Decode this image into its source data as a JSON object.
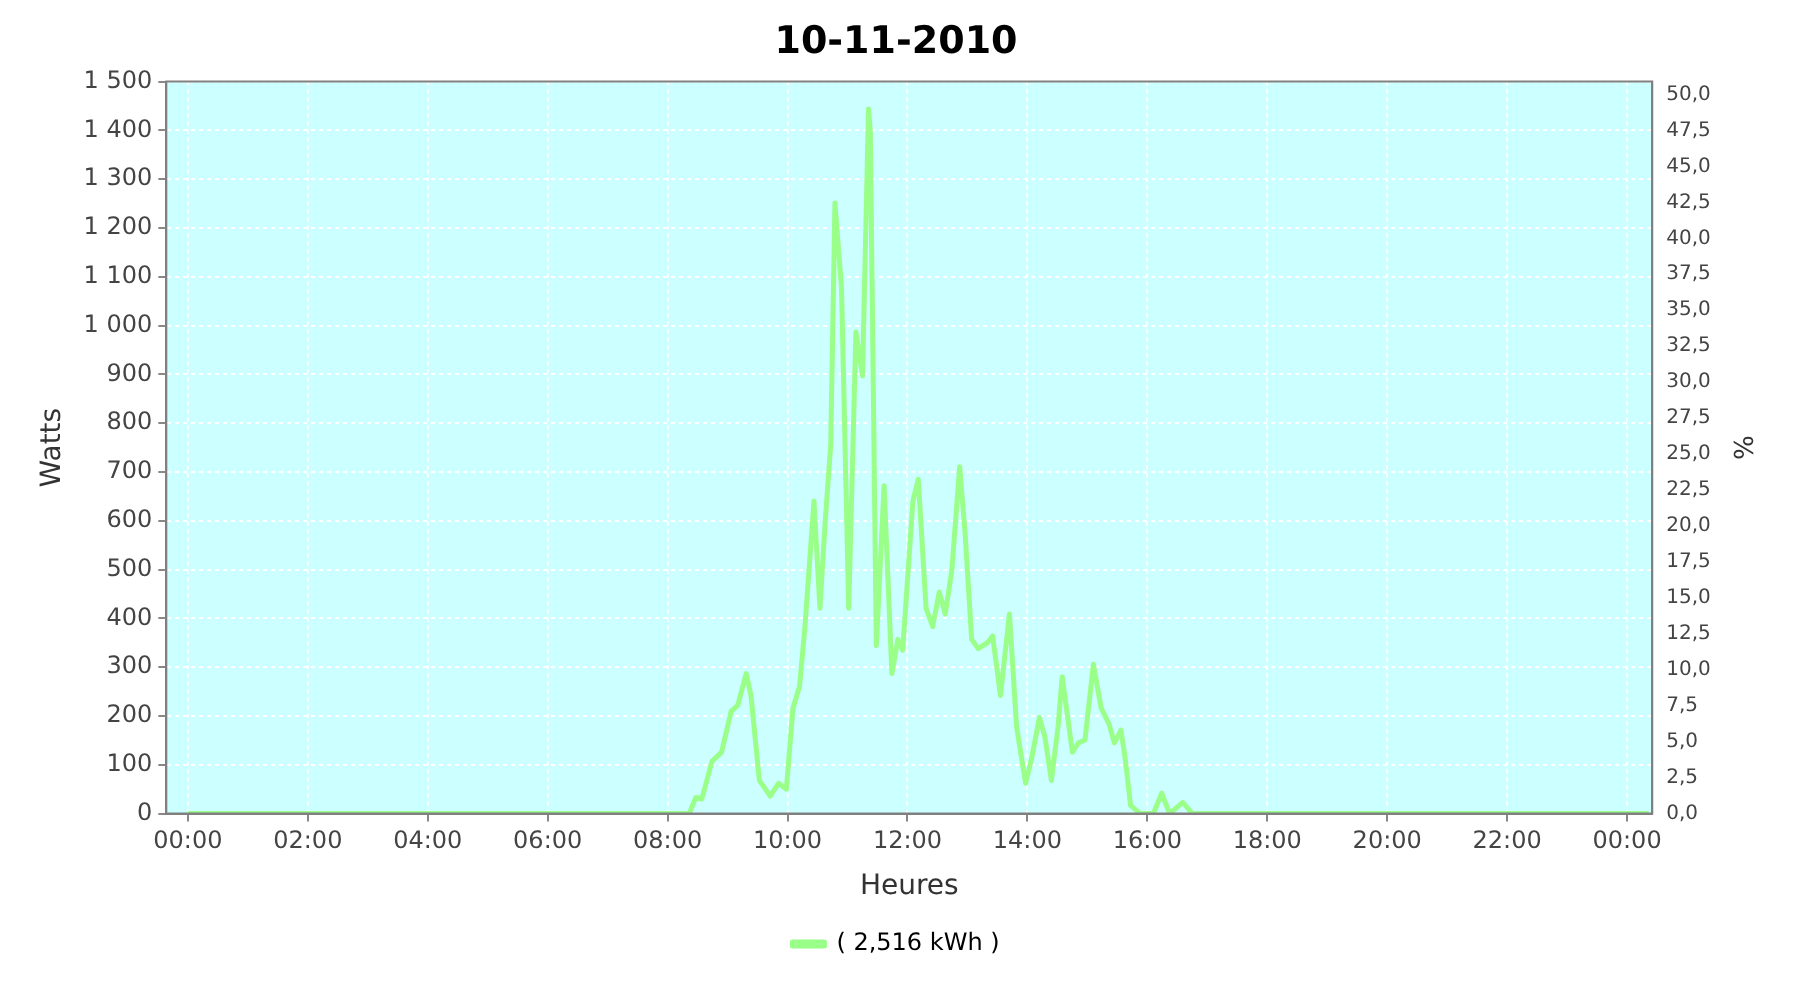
{
  "chart_data": {
    "type": "line",
    "title": "10-11-2010",
    "xlabel": "Heures",
    "ylabel": "Watts",
    "y2label": "%",
    "xlim": [
      -0.36,
      24.42
    ],
    "xticks": [
      {
        "value": 0,
        "label": "00:00"
      },
      {
        "value": 2,
        "label": "02:00"
      },
      {
        "value": 4,
        "label": "04:00"
      },
      {
        "value": 6,
        "label": "06:00"
      },
      {
        "value": 8,
        "label": "08:00"
      },
      {
        "value": 10,
        "label": "10:00"
      },
      {
        "value": 12,
        "label": "12:00"
      },
      {
        "value": 14,
        "label": "14:00"
      },
      {
        "value": 16,
        "label": "16:00"
      },
      {
        "value": 18,
        "label": "18:00"
      },
      {
        "value": 20,
        "label": "20:00"
      },
      {
        "value": 22,
        "label": "22:00"
      },
      {
        "value": 24,
        "label": "00:00"
      }
    ],
    "ylim": [
      0,
      1500
    ],
    "yticks": [
      0,
      100,
      200,
      300,
      400,
      500,
      600,
      700,
      800,
      900,
      {
        "value": 1000,
        "label": "1 000"
      },
      {
        "value": 1100,
        "label": "1 100"
      },
      {
        "value": 1200,
        "label": "1 200"
      },
      {
        "value": 1300,
        "label": "1 300"
      },
      {
        "value": 1400,
        "label": "1 400"
      },
      {
        "value": 1500,
        "label": "1 500"
      }
    ],
    "y2lim": [
      0,
      50.9
    ],
    "y2ticks": [
      {
        "value": 0,
        "label": "0,0"
      },
      {
        "value": 2.5,
        "label": "2,5"
      },
      {
        "value": 5,
        "label": "5,0"
      },
      {
        "value": 7.5,
        "label": "7,5"
      },
      {
        "value": 10,
        "label": "10,0"
      },
      {
        "value": 12.5,
        "label": "12,5"
      },
      {
        "value": 15,
        "label": "15,0"
      },
      {
        "value": 17.5,
        "label": "17,5"
      },
      {
        "value": 20,
        "label": "20,0"
      },
      {
        "value": 22.5,
        "label": "22,5"
      },
      {
        "value": 25,
        "label": "25,0"
      },
      {
        "value": 27.5,
        "label": "27,5"
      },
      {
        "value": 30,
        "label": "30,0"
      },
      {
        "value": 32.5,
        "label": "32,5"
      },
      {
        "value": 35,
        "label": "35,0"
      },
      {
        "value": 37.5,
        "label": "37,5"
      },
      {
        "value": 40,
        "label": "40,0"
      },
      {
        "value": 42.5,
        "label": "42,5"
      },
      {
        "value": 45,
        "label": "45,0"
      },
      {
        "value": 47.5,
        "label": "47,5"
      },
      {
        "value": 50,
        "label": "50,0"
      }
    ],
    "grid": true,
    "legend": "bottom",
    "marker": "none",
    "line_style": "solid",
    "series": [
      {
        "name": "( 2,516 kWh )",
        "color": "#99ff88",
        "x": [
          0,
          8.36,
          8.47,
          8.57,
          8.74,
          8.9,
          9.06,
          9.17,
          9.31,
          9.39,
          9.53,
          9.71,
          9.85,
          9.98,
          10.09,
          10.2,
          10.29,
          10.44,
          10.54,
          10.63,
          10.72,
          10.79,
          10.9,
          11.02,
          11.14,
          11.25,
          11.35,
          11.38,
          11.48,
          11.61,
          11.74,
          11.84,
          11.92,
          12.09,
          12.18,
          12.31,
          12.42,
          12.53,
          12.63,
          12.74,
          12.87,
          12.96,
          13.07,
          13.18,
          13.34,
          13.42,
          13.55,
          13.7,
          13.82,
          13.97,
          14.07,
          14.2,
          14.29,
          14.4,
          14.51,
          14.58,
          14.75,
          14.85,
          14.96,
          15.1,
          15.23,
          15.36,
          15.45,
          15.56,
          15.63,
          15.72,
          15.88,
          16.1,
          16.24,
          16.37,
          16.59,
          16.75,
          24.36
        ],
        "values": [
          0,
          0,
          33,
          30,
          107,
          126,
          210,
          222,
          287,
          242,
          68,
          36,
          62,
          50,
          216,
          261,
          383,
          640,
          421,
          602,
          756,
          1251,
          1077,
          421,
          987,
          897,
          1444,
          1399,
          344,
          672,
          287,
          357,
          335,
          640,
          685,
          421,
          383,
          454,
          409,
          499,
          711,
          576,
          357,
          338,
          351,
          364,
          242,
          409,
          177,
          62,
          113,
          197,
          158,
          68,
          177,
          280,
          126,
          145,
          151,
          306,
          216,
          184,
          145,
          171,
          113,
          17,
          0,
          0,
          42,
          0,
          23,
          0,
          0
        ]
      }
    ]
  }
}
